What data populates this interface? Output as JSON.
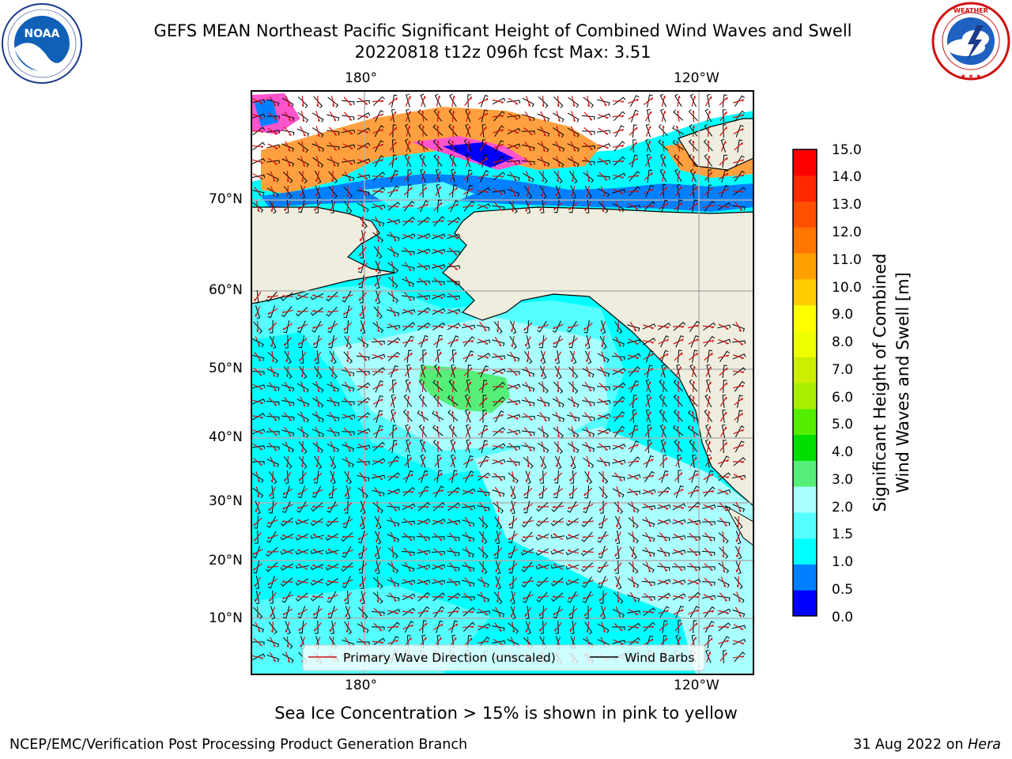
{
  "header": {
    "title_line1": "GEFS MEAN Northeast Pacific Significant Height of Combined Wind Waves and Swell",
    "title_line2": "20220818 t12z 096h fcst   Max: 3.51"
  },
  "logos": {
    "noaa": {
      "text": "NOAA",
      "ring_text": "NATIONAL OCEANIC AND ATMOSPHERIC ADMINISTRATION · U.S. DEPARTMENT OF COMMERCE"
    },
    "nws": {
      "ring_text": "NATIONAL WEATHER SERVICE"
    }
  },
  "map": {
    "lon_top": [
      "180°",
      "120°W"
    ],
    "lon_bottom": [
      "180°",
      "120°W"
    ],
    "lat_labels": [
      "70°N",
      "60°N",
      "50°N",
      "40°N",
      "30°N",
      "20°N",
      "10°N"
    ],
    "colors": {
      "land": "#efedde",
      "ocean_low": "#00ffff",
      "ocean_mid": "#aaffff",
      "peak": "#55ee77",
      "ice": "#ffa040",
      "ice_edge": "#ff55cc"
    },
    "legend": {
      "wave_dir": "Primary Wave Direction (unscaled)",
      "wind_barbs": "Wind Barbs"
    }
  },
  "colorbar": {
    "title_line1": "Significant Height of Combined",
    "title_line2": "Wind Waves and Swell [m]",
    "ticks": [
      "15.0",
      "14.0",
      "13.0",
      "12.0",
      "11.0",
      "10.0",
      "9.0",
      "8.0",
      "7.0",
      "6.0",
      "5.0",
      "4.0",
      "3.0",
      "2.0",
      "1.5",
      "1.0",
      "0.5",
      "0.0"
    ],
    "colors": [
      "#0000ff",
      "#0080ff",
      "#00ffff",
      "#55ffff",
      "#aaffff",
      "#55ee77",
      "#00dd00",
      "#55ee00",
      "#aaee00",
      "#ccee00",
      "#eeff00",
      "#ffff00",
      "#ffcc00",
      "#ffa000",
      "#ff7700",
      "#ff5000",
      "#ff2800",
      "#ff0000"
    ]
  },
  "note": "Sea Ice Concentration > 15% is shown in pink to yellow",
  "footer": {
    "left": "NCEP/EMC/Verification Post Processing Product Generation Branch",
    "right_date": "31 Aug 2022 on",
    "right_host": "Hera"
  }
}
